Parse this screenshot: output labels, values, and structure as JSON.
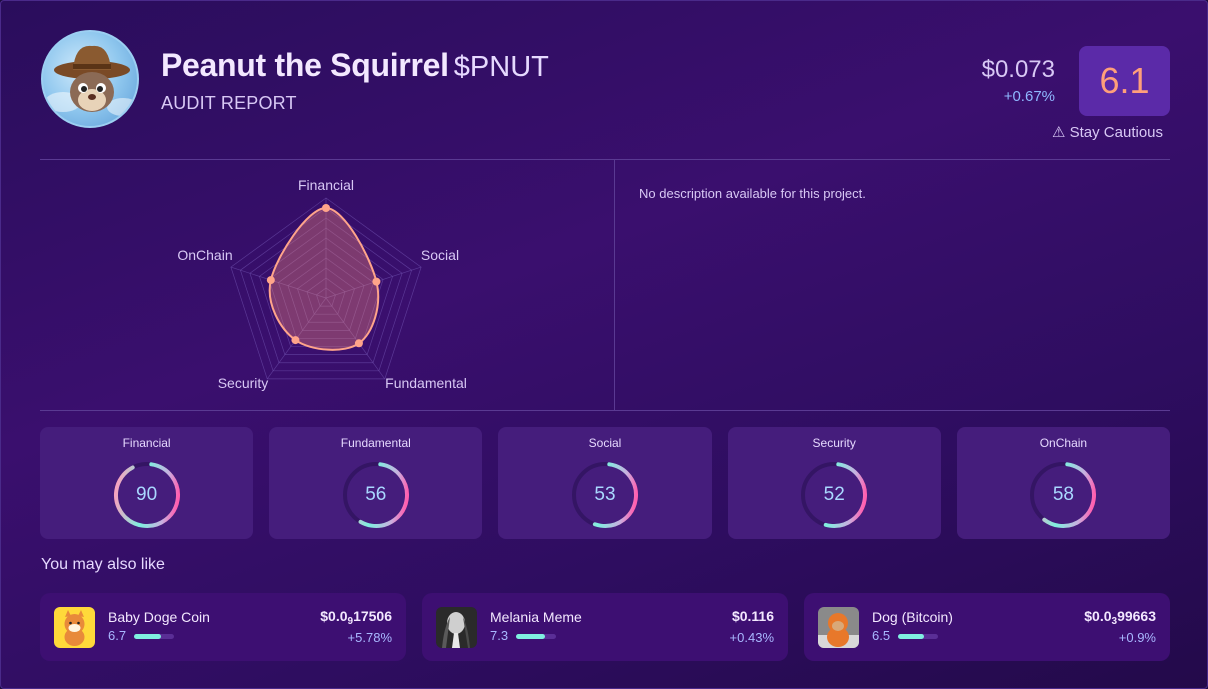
{
  "header": {
    "name": "Peanut the Squirrel",
    "ticker": "$PNUT",
    "subtitle": "AUDIT REPORT",
    "avatar_icon": "squirrel-cowboy-logo",
    "price": "$0.073",
    "change": "+0.67%",
    "score": "6.1",
    "verdict": "⚠ Stay Cautious",
    "colors": {
      "score_bg": "#5b2aa8",
      "score_text": "#ff9f7a",
      "change": "#8fb8ff"
    }
  },
  "radar": {
    "axes": [
      "Financial",
      "Social",
      "Fundamental",
      "Security",
      "OnChain"
    ],
    "values": [
      90,
      53,
      56,
      52,
      58
    ],
    "max": 100,
    "colors": {
      "line": "#ffa48a",
      "fill": "rgba(255,140,120,0.35)",
      "grid": "#6a4aa8"
    }
  },
  "description": "No description available for this project.",
  "scores": [
    {
      "label": "Financial",
      "value": 90
    },
    {
      "label": "Fundamental",
      "value": 56
    },
    {
      "label": "Social",
      "value": 53
    },
    {
      "label": "Security",
      "value": 52
    },
    {
      "label": "OnChain",
      "value": 58
    }
  ],
  "also_like": {
    "title": "You may also like",
    "items": [
      {
        "name": "Baby Doge Coin",
        "score": "6.7",
        "score_pct": 67,
        "price_prefix": "$0.0",
        "price_sub": "9",
        "price_rest": "17506",
        "change": "+5.78%",
        "icon": "baby-doge-logo"
      },
      {
        "name": "Melania Meme",
        "score": "7.3",
        "score_pct": 73,
        "price_prefix": "$0.116",
        "price_sub": "",
        "price_rest": "",
        "change": "+0.43%",
        "icon": "melania-logo"
      },
      {
        "name": "Dog (Bitcoin)",
        "score": "6.5",
        "score_pct": 65,
        "price_prefix": "$0.0",
        "price_sub": "3",
        "price_rest": "99663",
        "change": "+0.9%",
        "icon": "dog-bitcoin-logo"
      }
    ]
  }
}
